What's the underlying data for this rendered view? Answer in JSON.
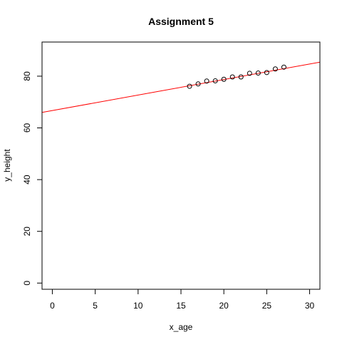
{
  "chart_data": {
    "type": "scatter",
    "title": "Assignment 5",
    "xlabel": "x_age",
    "ylabel": "y_height",
    "xlim": [
      -1.2,
      31.2
    ],
    "ylim": [
      -2.4,
      93.2
    ],
    "x_ticks": [
      0,
      5,
      10,
      15,
      20,
      25,
      30
    ],
    "y_ticks": [
      0,
      20,
      40,
      60,
      80
    ],
    "grid": false,
    "points": {
      "x": [
        16,
        17,
        18,
        19,
        20,
        21,
        22,
        23,
        24,
        25,
        26,
        27
      ],
      "y": [
        76.1,
        77.0,
        78.1,
        78.2,
        78.8,
        79.7,
        79.7,
        81.1,
        81.2,
        81.4,
        82.8,
        83.5
      ],
      "marker": "open-circle",
      "color": "#000000"
    },
    "fit_line": {
      "intercept": 66.7,
      "slope": 0.6,
      "color": "#ff0000"
    }
  }
}
